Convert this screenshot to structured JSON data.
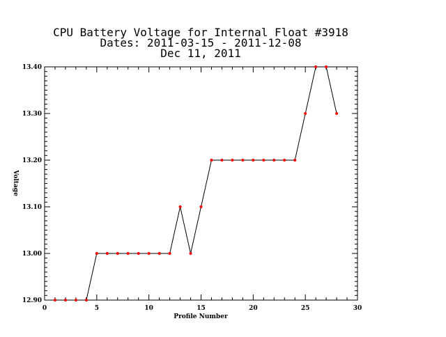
{
  "chart_data": {
    "type": "line",
    "title_lines": [
      "CPU Battery Voltage for Internal Float #3918",
      "Dates:  2011-03-15 -  2011-12-08",
      "Dec 11, 2011"
    ],
    "xlabel": "Profile Number",
    "ylabel": "Voltage",
    "xlim": [
      0,
      30
    ],
    "ylim": [
      12.9,
      13.4
    ],
    "x_ticks": [
      0,
      5,
      10,
      15,
      20,
      25,
      30
    ],
    "x_tick_labels": [
      "0",
      "5",
      "10",
      "15",
      "20",
      "25",
      "30"
    ],
    "y_ticks": [
      12.9,
      13.0,
      13.1,
      13.2,
      13.3,
      13.4
    ],
    "y_tick_labels": [
      "12.90",
      "13.00",
      "13.10",
      "13.20",
      "13.30",
      "13.40"
    ],
    "grid": false,
    "series": [
      {
        "x": [
          1,
          2,
          3,
          4,
          5,
          6,
          7,
          8,
          9,
          10,
          11,
          12,
          13,
          14,
          15,
          16,
          17,
          18,
          19,
          20,
          21,
          22,
          23,
          24,
          25,
          26,
          27,
          28
        ],
        "y": [
          12.9,
          12.9,
          12.9,
          12.9,
          13.0,
          13.0,
          13.0,
          13.0,
          13.0,
          13.0,
          13.0,
          13.0,
          13.1,
          13.0,
          13.1,
          13.2,
          13.2,
          13.2,
          13.2,
          13.2,
          13.2,
          13.2,
          13.2,
          13.2,
          13.3,
          13.4,
          13.4,
          13.3
        ],
        "line_color": "#000000",
        "marker_color": "#ff0000"
      }
    ]
  }
}
